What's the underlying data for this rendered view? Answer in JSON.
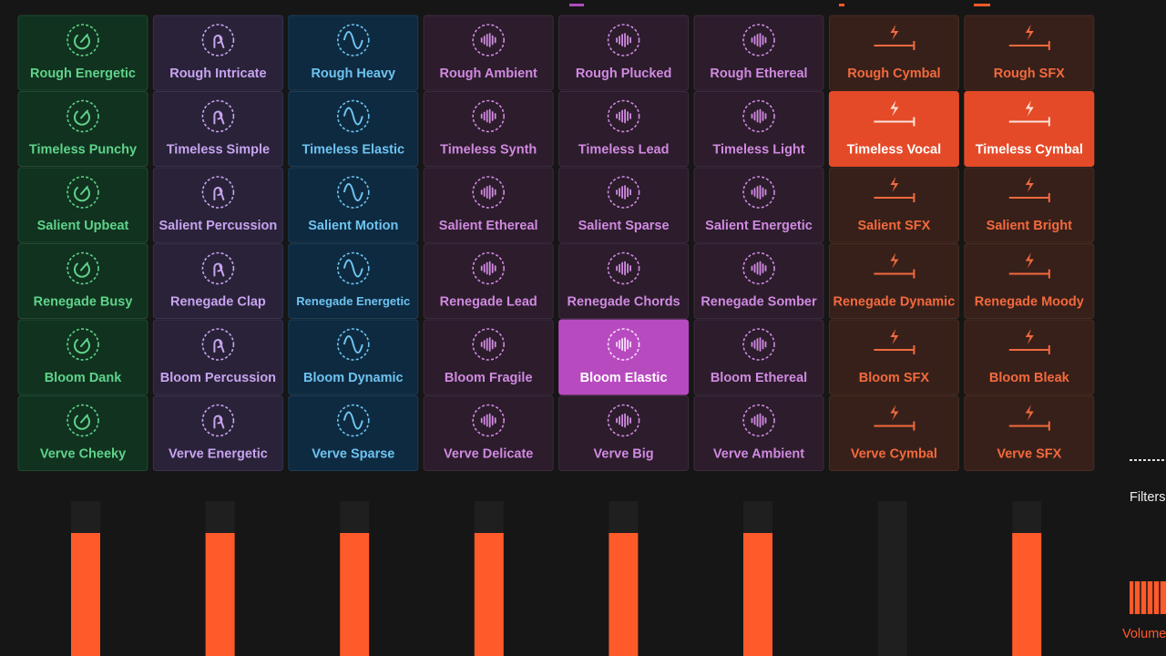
{
  "pads": {
    "columns": [
      {
        "labels": [
          "Rough Energetic",
          "Timeless Punchy",
          "Salient Upbeat",
          "Renegade Busy",
          "Bloom Dank",
          "Verve Cheeky"
        ]
      },
      {
        "labels": [
          "Rough Intricate",
          "Timeless Simple",
          "Salient Percussion",
          "Renegade Clap",
          "Bloom Percussion",
          "Verve Energetic"
        ]
      },
      {
        "labels": [
          "Rough Heavy",
          "Timeless Elastic",
          "Salient Motion",
          "Renegade Energetic",
          "Bloom Dynamic",
          "Verve Sparse"
        ]
      },
      {
        "labels": [
          "Rough Ambient",
          "Timeless Synth",
          "Salient Ethereal",
          "Renegade Lead",
          "Bloom Fragile",
          "Verve Delicate"
        ]
      },
      {
        "labels": [
          "Rough Plucked",
          "Timeless Lead",
          "Salient Sparse",
          "Renegade Chords",
          "Bloom Elastic",
          "Verve Big"
        ]
      },
      {
        "labels": [
          "Rough Ethereal",
          "Timeless Light",
          "Salient Energetic",
          "Renegade Somber",
          "Bloom Ethereal",
          "Verve Ambient"
        ]
      },
      {
        "labels": [
          "Rough Cymbal",
          "Timeless Vocal",
          "Salient SFX",
          "Renegade Dynamic",
          "Bloom SFX",
          "Verve Cymbal"
        ]
      },
      {
        "labels": [
          "Rough SFX",
          "Timeless Cymbal",
          "Salient Bright",
          "Renegade Moody",
          "Bloom Bleak",
          "Verve SFX"
        ]
      }
    ]
  },
  "side": {
    "filters": "Filters",
    "volume": "Volume"
  }
}
